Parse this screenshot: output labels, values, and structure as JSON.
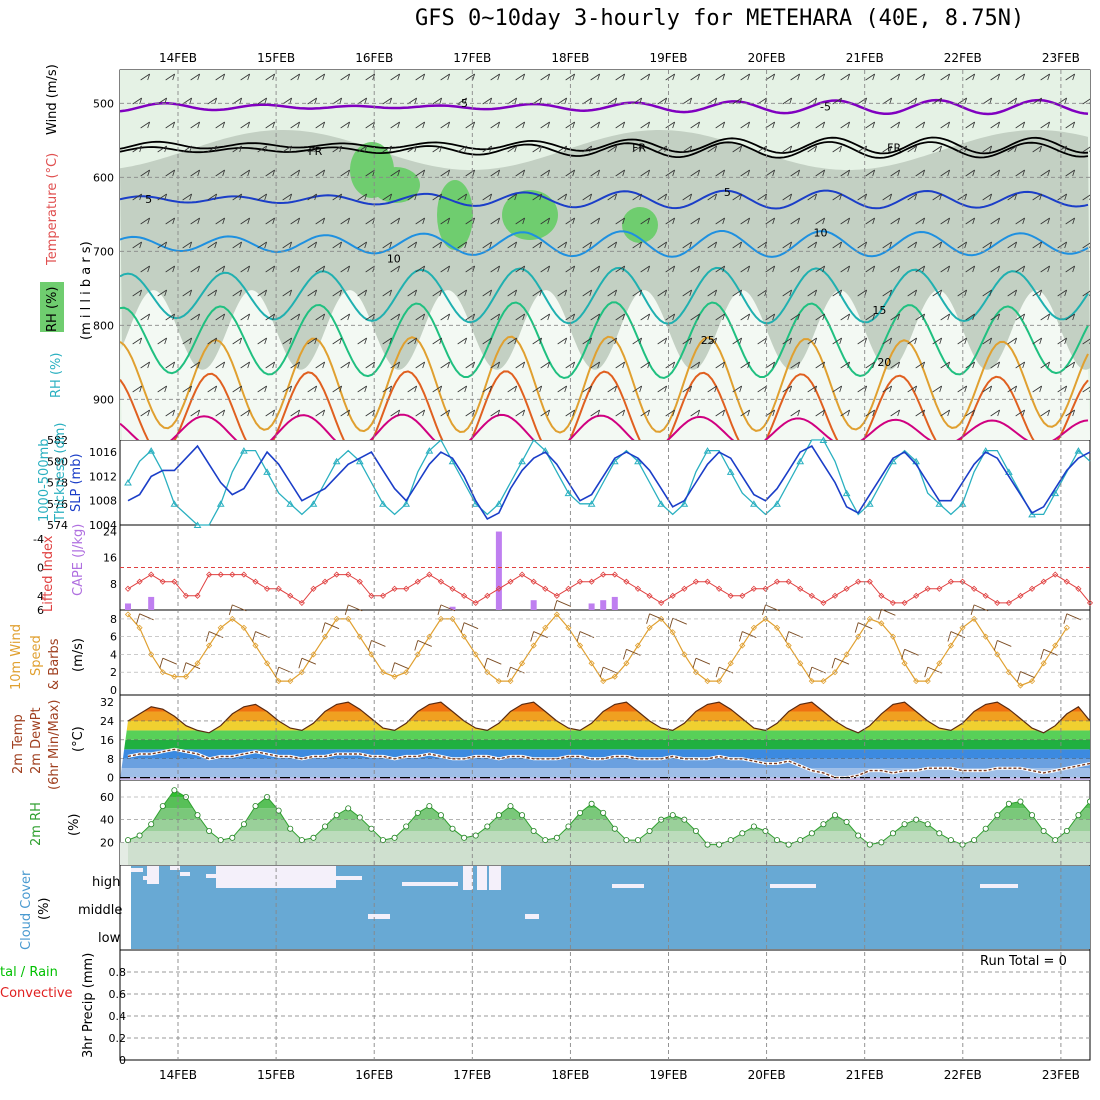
{
  "title": "GFS 0~10day 3-hourly for METEHARA (40E, 8.75N)",
  "dates": [
    "14FEB",
    "15FEB",
    "16FEB",
    "17FEB",
    "18FEB",
    "19FEB",
    "20FEB",
    "21FEB",
    "22FEB",
    "23FEB"
  ],
  "panel_labels": {
    "upper": {
      "wind": "Wind (m/s)",
      "temp": "Temperature (°C)",
      "rh": "RH (%)",
      "mb": "(m i l l i b a r s)"
    },
    "thick": {
      "thick1": "1000-500mb",
      "thick2": "Thickness (dm)",
      "slp": "SLP (mb)"
    },
    "li": {
      "li": "Lifted Index",
      "cape": "CAPE (J/kg)"
    },
    "wind10": {
      "a": "10m Wind",
      "b": "Speed",
      "c": "& Barbs",
      "u": "(m/s)"
    },
    "temp2m": {
      "a": "2m Temp",
      "b": "2m DewPt",
      "c": "(6hr Min/Max)",
      "u": "(°C)"
    },
    "rh2m": {
      "a": "2m RH",
      "u": "(%)"
    },
    "cloud": {
      "a": "Cloud Cover",
      "u": "(%)",
      "high": "high",
      "middle": "middle",
      "low": "low"
    },
    "precip": {
      "a": "tal / Rain",
      "b": "Convective",
      "c": "3hr Precip (mm)",
      "run_total": "Run Total = 0"
    }
  },
  "colors": {
    "rh_green_light": "#e5f2e5",
    "rh_gray": "#b7c4b7",
    "rh_green": "#6fcd6f",
    "cloud_blue": "#68a9d4",
    "slp_line": "#1b3ec8",
    "thickness_line": "#2ab0c0",
    "li_line": "#e04040",
    "cape_bar": "#bf7ff0",
    "wind_speed_line": "#e0a030",
    "rh2m_line": "#30a030",
    "precip_label_green": "#00c000",
    "precip_label_red": "#e02020"
  },
  "chart_data": [
    {
      "type": "area",
      "name": "pressure-level cross section",
      "y_axis": "millibars",
      "yticks": [
        500,
        600,
        700,
        800,
        900
      ],
      "ylim": [
        955,
        455
      ],
      "temperature_contour_labels": [
        {
          "text": "-5",
          "level_mb": 505,
          "day_index": 2.9
        },
        {
          "text": "-5",
          "level_mb": 510,
          "day_index": 6.6
        },
        {
          "text": "FR",
          "level_mb": 570,
          "day_index": 1.4
        },
        {
          "text": "FR",
          "level_mb": 565,
          "day_index": 4.7
        },
        {
          "text": "FR",
          "level_mb": 565,
          "day_index": 7.3
        },
        {
          "text": "5",
          "level_mb": 635,
          "day_index": -0.3
        },
        {
          "text": "5",
          "level_mb": 625,
          "day_index": 5.6
        },
        {
          "text": "10",
          "level_mb": 715,
          "day_index": 2.2
        },
        {
          "text": "10",
          "level_mb": 680,
          "day_index": 6.55
        },
        {
          "text": "15",
          "level_mb": 785,
          "day_index": 7.15
        },
        {
          "text": "20",
          "level_mb": 855,
          "day_index": 7.2
        },
        {
          "text": "25",
          "level_mb": 825,
          "day_index": 5.4
        }
      ]
    },
    {
      "type": "line",
      "name": "thickness and SLP",
      "x_days": 10,
      "thickness_yticks": [
        574,
        576,
        578,
        580,
        582
      ],
      "thickness_ylim": [
        574,
        582
      ],
      "slp_yticks": [
        1004,
        1008,
        1012,
        1016
      ],
      "slp_ylim": [
        1004,
        1018
      ],
      "series": [
        {
          "name": "SLP (mb)",
          "values": [
            1008,
            1009,
            1012,
            1013,
            1013,
            1015,
            1017,
            1014,
            1011,
            1009,
            1010,
            1013,
            1016,
            1014,
            1011,
            1008,
            1009,
            1010,
            1012,
            1014,
            1015,
            1016,
            1013,
            1010,
            1008,
            1011,
            1014,
            1016,
            1015,
            1012,
            1008,
            1005,
            1006,
            1010,
            1013,
            1015,
            1016,
            1014,
            1011,
            1008,
            1009,
            1012,
            1015,
            1016,
            1015,
            1013,
            1010,
            1007,
            1008,
            1011,
            1014,
            1016,
            1015,
            1012,
            1009,
            1008,
            1010,
            1013,
            1016,
            1017,
            1014,
            1011,
            1007,
            1006,
            1009,
            1012,
            1015,
            1016,
            1014,
            1011,
            1008,
            1008,
            1011,
            1014,
            1016,
            1015,
            1012,
            1009,
            1006,
            1007,
            1010,
            1013,
            1015,
            1016
          ]
        },
        {
          "name": "Thickness",
          "values": [
            578,
            580,
            581,
            579,
            576,
            575,
            574,
            574,
            576,
            579,
            581,
            581,
            579,
            577,
            576,
            575,
            576,
            578,
            580,
            581,
            580,
            578,
            576,
            575,
            576,
            579,
            581,
            582,
            580,
            578,
            576,
            575,
            576,
            578,
            580,
            582,
            581,
            579,
            577,
            576,
            576,
            578,
            580,
            581,
            580,
            578,
            576,
            575,
            576,
            579,
            581,
            581,
            579,
            577,
            576,
            575,
            576,
            578,
            580,
            582,
            582,
            580,
            577,
            575,
            576,
            578,
            580,
            581,
            580,
            577,
            576,
            575,
            576,
            579,
            581,
            581,
            579,
            577,
            575,
            575,
            577,
            579,
            581,
            580
          ]
        }
      ]
    },
    {
      "type": "bar",
      "name": "lifted index and CAPE",
      "li_yticks": [
        -4,
        0,
        4,
        6
      ],
      "li_ylim": [
        -6,
        6
      ],
      "cape_yticks": [
        8,
        16,
        24
      ],
      "cape_ylim": [
        0,
        26
      ],
      "li_values": [
        3,
        2,
        1,
        2,
        2,
        4,
        4,
        1,
        1,
        1,
        1,
        2,
        3,
        3,
        4,
        5,
        3,
        2,
        1,
        1,
        2,
        4,
        4,
        3,
        3,
        2,
        1,
        2,
        3,
        4,
        5,
        4,
        3,
        2,
        1,
        2,
        3,
        4,
        3,
        2,
        2,
        1,
        1,
        2,
        3,
        4,
        5,
        4,
        3,
        2,
        2,
        3,
        4,
        4,
        3,
        3,
        2,
        2,
        3,
        4,
        5,
        4,
        3,
        2,
        2,
        4,
        5,
        5,
        4,
        3,
        3,
        2,
        2,
        3,
        4,
        5,
        5,
        4,
        3,
        2,
        1,
        2,
        3,
        5
      ],
      "cape_values": [
        2,
        0,
        4,
        0,
        0,
        0,
        0,
        0,
        0,
        0,
        0,
        0,
        0,
        0,
        0,
        0,
        0,
        0,
        0,
        0,
        0,
        0,
        0,
        0,
        0,
        0,
        0,
        0,
        1,
        0,
        0,
        0,
        24,
        0,
        0,
        3,
        0,
        0,
        0,
        0,
        2,
        3,
        4,
        0,
        0,
        0,
        0,
        0,
        0,
        0,
        0,
        0,
        0,
        0,
        0,
        0,
        0,
        0,
        0,
        0,
        0,
        0,
        0,
        0,
        0,
        0,
        0,
        0,
        0,
        0,
        0,
        0,
        0,
        0,
        0,
        0,
        0,
        0,
        0,
        0,
        0,
        0,
        0,
        0
      ]
    },
    {
      "type": "line",
      "name": "10m wind speed",
      "yticks": [
        0,
        2,
        4,
        6,
        8
      ],
      "ylim": [
        0,
        9
      ],
      "values": [
        8.5,
        7,
        4,
        2,
        1.5,
        1.5,
        3,
        5,
        7,
        8,
        7,
        5,
        3,
        1,
        1,
        2,
        4,
        6,
        8,
        8,
        6,
        4,
        2,
        1.5,
        2,
        4,
        6,
        8,
        8,
        6,
        4,
        2,
        1,
        1,
        3,
        5,
        7,
        8.5,
        7,
        5,
        3,
        1,
        1.5,
        3,
        5,
        7,
        8,
        6.5,
        4,
        2,
        1,
        1,
        3,
        5,
        7,
        8,
        7,
        5,
        3,
        1,
        1,
        2,
        4,
        6,
        8,
        7.5,
        6,
        3,
        1,
        1,
        3,
        5,
        7,
        8,
        6,
        4,
        2,
        0.5,
        1,
        3,
        5,
        7
      ]
    },
    {
      "type": "area",
      "name": "2m temperature and dewpoint",
      "yticks": [
        0,
        8,
        16,
        24,
        32
      ],
      "ylim": [
        -1,
        35
      ],
      "temp_values": [
        24,
        27,
        30,
        29,
        26,
        22,
        20,
        19,
        22,
        27,
        30,
        31,
        28,
        24,
        21,
        20,
        23,
        28,
        31,
        32,
        29,
        25,
        21,
        20,
        23,
        28,
        31,
        32,
        28,
        24,
        21,
        20,
        23,
        28,
        31,
        32,
        28,
        24,
        21,
        20,
        23,
        28,
        31,
        32,
        28,
        24,
        21,
        20,
        23,
        28,
        31,
        32,
        29,
        25,
        21,
        20,
        23,
        28,
        31,
        32,
        28,
        24,
        21,
        19,
        22,
        27,
        31,
        32,
        28,
        24,
        21,
        20,
        23,
        28,
        31,
        32,
        29,
        25,
        21,
        19,
        22,
        27,
        30,
        24
      ],
      "dewpt_values": [
        9,
        10,
        10,
        11,
        12,
        11,
        10,
        8,
        9,
        9,
        10,
        11,
        10,
        9,
        9,
        8,
        9,
        9,
        10,
        10,
        10,
        9,
        9,
        8,
        9,
        9,
        10,
        9,
        8,
        8,
        9,
        9,
        8,
        9,
        9,
        8,
        8,
        8,
        9,
        9,
        8,
        8,
        9,
        9,
        8,
        8,
        8,
        9,
        8,
        8,
        8,
        9,
        8,
        8,
        7,
        6,
        6,
        7,
        5,
        3,
        2,
        0,
        0,
        1,
        3,
        3,
        2,
        3,
        3,
        4,
        4,
        4,
        3,
        3,
        3,
        4,
        4,
        4,
        3,
        2,
        3,
        4,
        5,
        6
      ]
    },
    {
      "type": "area",
      "name": "2m relative humidity",
      "yticks": [
        20,
        40,
        60
      ],
      "ylim": [
        0,
        75
      ],
      "values": [
        22,
        26,
        36,
        52,
        66,
        60,
        44,
        30,
        22,
        24,
        36,
        52,
        60,
        48,
        32,
        22,
        24,
        34,
        44,
        50,
        42,
        32,
        22,
        24,
        34,
        46,
        52,
        44,
        32,
        24,
        26,
        34,
        44,
        52,
        44,
        30,
        22,
        24,
        34,
        46,
        54,
        46,
        32,
        22,
        22,
        30,
        40,
        44,
        40,
        30,
        18,
        18,
        22,
        28,
        34,
        30,
        22,
        18,
        22,
        28,
        36,
        44,
        38,
        26,
        18,
        20,
        28,
        36,
        40,
        36,
        28,
        22,
        18,
        22,
        32,
        44,
        54,
        56,
        44,
        30,
        22,
        30,
        44,
        56
      ]
    },
    {
      "type": "bar",
      "name": "cloud cover",
      "levels": [
        "high",
        "middle",
        "low"
      ],
      "cover_pct": 100
    },
    {
      "type": "bar",
      "name": "3hr precipitation",
      "yticks": [
        0,
        0.2,
        0.4,
        0.6,
        0.8
      ],
      "ylim": [
        0,
        1
      ],
      "values": []
    }
  ]
}
